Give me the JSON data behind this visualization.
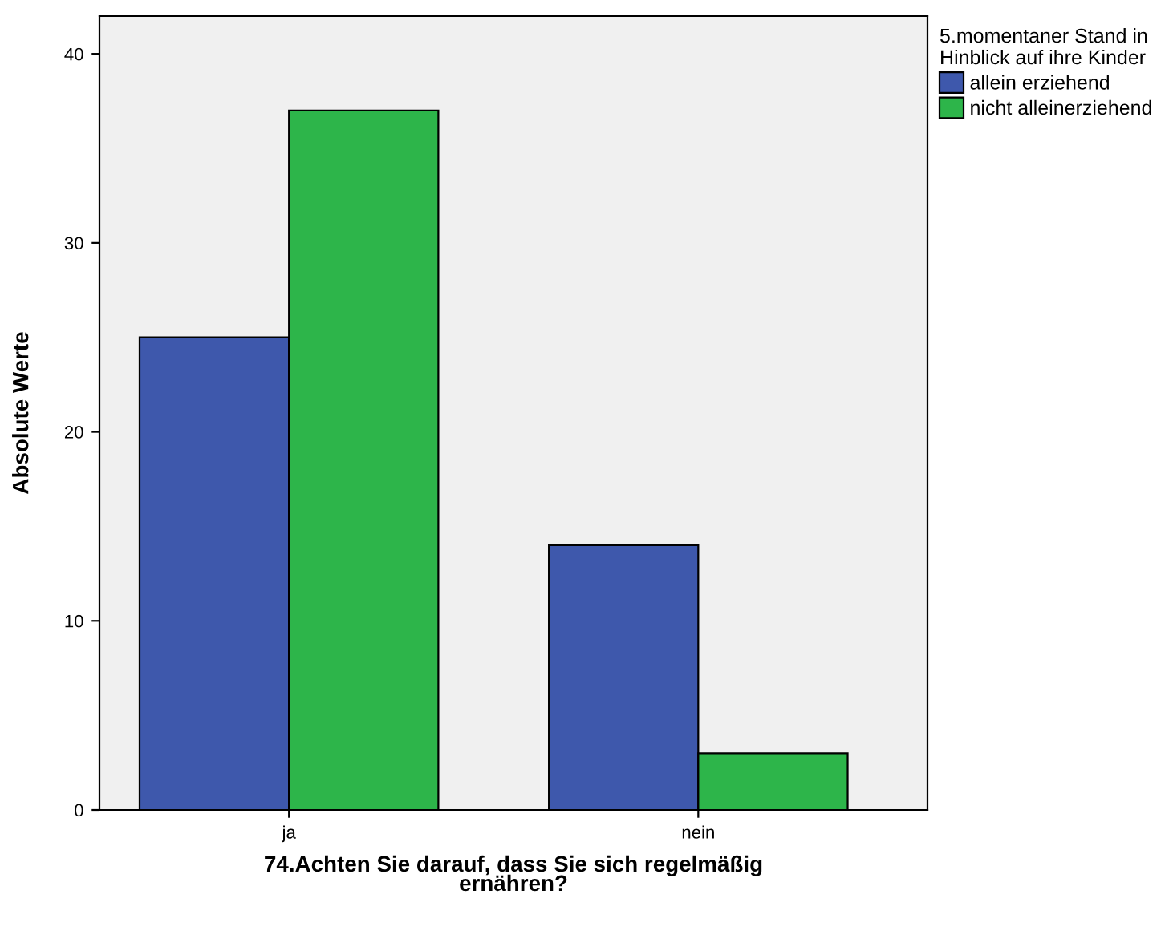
{
  "chart_data": {
    "type": "bar",
    "categories": [
      "ja",
      "nein"
    ],
    "series": [
      {
        "name": "allein erziehend",
        "color": "#3e58ac",
        "values": [
          25,
          14
        ]
      },
      {
        "name": "nicht alleinerziehend",
        "color": "#2db54a",
        "values": [
          37,
          3
        ]
      }
    ],
    "xlabel": "74.Achten Sie darauf, dass Sie sich regelmäßig\nernähren?",
    "ylabel": "Absolute Werte",
    "legend_title": "5.momentaner Stand in\nHinblick auf ihre Kinder",
    "legend": "top right",
    "ylim": [
      0,
      42
    ],
    "yticks": [
      0,
      10,
      20,
      30,
      40
    ],
    "grid": false
  }
}
